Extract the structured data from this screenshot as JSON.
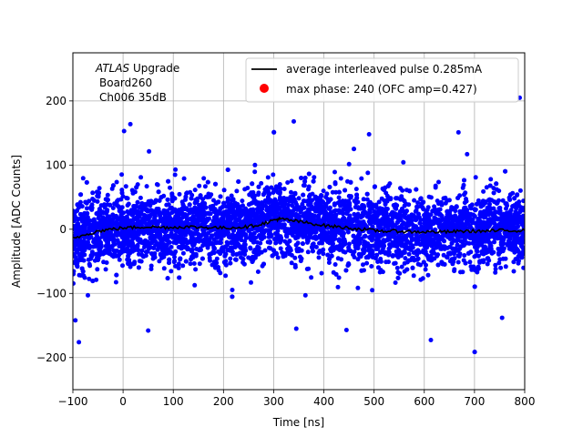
{
  "chart_data": {
    "type": "scatter",
    "xlabel": "Time [ns]",
    "ylabel": "Amplitude [ADC Counts]",
    "xlim": [
      -100,
      800
    ],
    "ylim": [
      -250,
      275
    ],
    "xticks": [
      -100,
      0,
      100,
      200,
      300,
      400,
      500,
      600,
      700,
      800
    ],
    "yticks": [
      -200,
      -100,
      0,
      100,
      200
    ],
    "grid": true,
    "legend_position": "top-right",
    "annotation": {
      "italic": "ATLAS",
      "rest": " Upgrade",
      "line2": "Board260",
      "line3": "Ch006 35dB"
    },
    "series": [
      {
        "name": "average interleaved pulse 0.285mA",
        "kind": "line",
        "color": "#000000",
        "x": [
          -100,
          -75,
          -50,
          -25,
          0,
          25,
          50,
          75,
          100,
          125,
          150,
          175,
          200,
          225,
          250,
          275,
          300,
          310,
          325,
          350,
          375,
          400,
          425,
          450,
          475,
          500,
          525,
          550,
          575,
          600,
          625,
          650,
          675,
          700,
          725,
          750,
          775,
          800
        ],
        "y": [
          -15,
          -8,
          -3,
          0,
          2,
          3,
          4,
          3,
          3,
          4,
          3,
          3,
          2,
          3,
          4,
          8,
          14,
          16,
          15,
          12,
          9,
          6,
          4,
          2,
          0,
          -2,
          -3,
          -3,
          -4,
          -4,
          -4,
          -4,
          -3,
          -3,
          -3,
          -2,
          -2,
          -2
        ]
      },
      {
        "name": "max phase: 240 (OFC amp=0.427)",
        "kind": "scatter",
        "color": "#0000ff",
        "legend_color": "#ff0000",
        "x_range": [
          -100,
          800
        ],
        "center_y": [
          [
            -100,
            -15
          ],
          [
            0,
            2
          ],
          [
            250,
            4
          ],
          [
            310,
            16
          ],
          [
            400,
            6
          ],
          [
            500,
            0
          ],
          [
            600,
            -4
          ],
          [
            800,
            -2
          ]
        ],
        "spread_std": 28,
        "extremes": [
          {
            "x": 2,
            "y": 153
          },
          {
            "x": 340,
            "y": 168
          },
          {
            "x": 790,
            "y": 205
          },
          {
            "x": -95,
            "y": -142
          },
          {
            "x": -88,
            "y": -176
          },
          {
            "x": 50,
            "y": -158
          },
          {
            "x": 345,
            "y": -155
          },
          {
            "x": 445,
            "y": -157
          },
          {
            "x": 755,
            "y": -138
          },
          {
            "x": 490,
            "y": 148
          }
        ]
      }
    ]
  }
}
